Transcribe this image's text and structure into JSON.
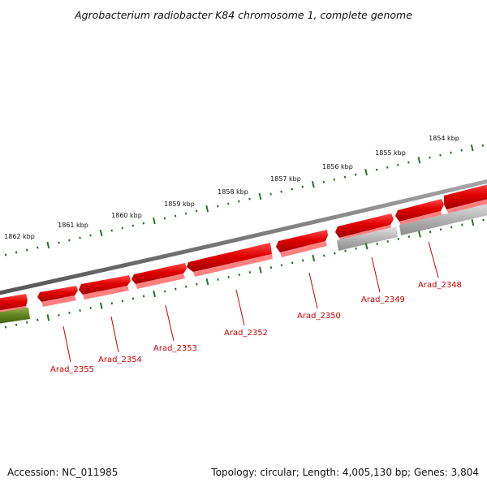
{
  "title": "Agrobacterium radiobacter K84 chromosome 1, complete genome",
  "footer": {
    "accession": "Accession: NC_011985",
    "summary": "Topology: circular; Length: 4,005,130 bp; Genes: 3,804"
  },
  "scale": {
    "unit": "kbp",
    "ticks": [
      "1854 kbp",
      "1855 kbp",
      "1856 kbp",
      "1857 kbp",
      "1858 kbp",
      "1859 kbp",
      "1860 kbp",
      "1861 kbp",
      "1862 kbp"
    ]
  },
  "genes": [
    {
      "label": "Arad_2348",
      "color": "#e00000"
    },
    {
      "label": "Arad_2349",
      "color": "#e00000"
    },
    {
      "label": "Arad_2350",
      "color": "#e00000"
    },
    {
      "label": "Arad_2352",
      "color": "#e00000"
    },
    {
      "label": "Arad_2353",
      "color": "#e00000"
    },
    {
      "label": "Arad_2354",
      "color": "#e00000"
    },
    {
      "label": "Arad_2355",
      "color": "#e00000"
    }
  ],
  "colors": {
    "backbone": "#808080",
    "tick": "#1f7a1f",
    "cds": "#e00000",
    "other_gene": "#b0b0b0",
    "rna": "#5a7f1e",
    "label": "#cc0000"
  }
}
